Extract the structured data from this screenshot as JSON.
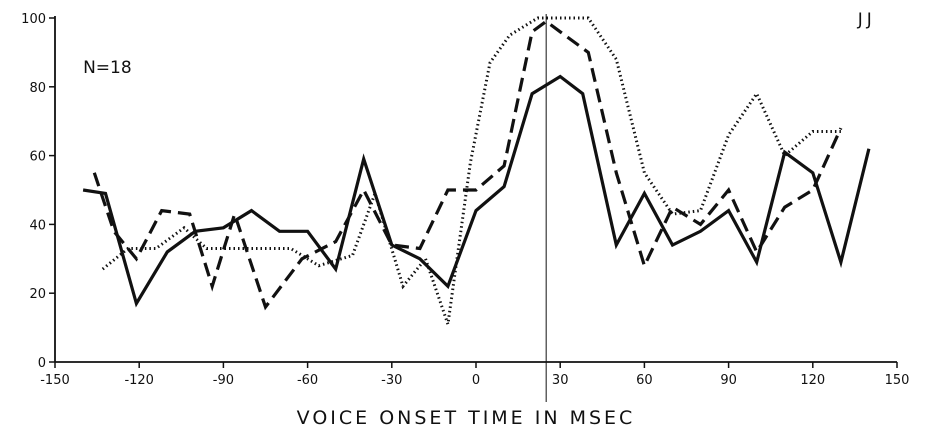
{
  "chart_data": {
    "type": "line",
    "title": "",
    "xlabel": "VOICE ONSET TIME IN MSEC",
    "ylabel": "",
    "xlim": [
      -150,
      150
    ],
    "ylim": [
      0,
      100
    ],
    "x_ticks": [
      -150,
      -120,
      -90,
      -60,
      -30,
      0,
      30,
      60,
      90,
      120,
      150
    ],
    "x_tick_labels": [
      "-150",
      "-120",
      "-90",
      "-60",
      "-30",
      "0",
      "30",
      "60",
      "90",
      "120",
      "150"
    ],
    "y_ticks": [
      0,
      20,
      40,
      60,
      80,
      100
    ],
    "y_tick_labels": [
      "0",
      "20",
      "40",
      "60",
      "80",
      "100"
    ],
    "grid": false,
    "annotations": [
      {
        "text": "N=18",
        "x": -140,
        "y": 84
      },
      {
        "text": "JJ",
        "x": 136,
        "y": 98
      }
    ],
    "reference_line_x": 25,
    "series": [
      {
        "style": "solid",
        "x": [
          -140,
          -132,
          -121,
          -110,
          -100,
          -90,
          -80,
          -70,
          -60,
          -50,
          -40,
          -30,
          -20,
          -10,
          0,
          10,
          20,
          30,
          38,
          50,
          60,
          70,
          80,
          90,
          100,
          110,
          120,
          130,
          140
        ],
        "y": [
          50,
          49,
          17,
          32,
          38,
          39,
          44,
          38,
          38,
          27,
          59,
          34,
          30,
          22,
          44,
          51,
          78,
          83,
          78,
          34,
          49,
          34,
          38,
          44,
          29,
          61,
          55,
          29,
          62
        ]
      },
      {
        "style": "dashed",
        "x": [
          -136,
          -129,
          -121,
          -112,
          -102,
          -94,
          -86,
          -75,
          -62,
          -50,
          -40,
          -30,
          -20,
          -10,
          0,
          10,
          20,
          25,
          30,
          40,
          50,
          60,
          70,
          80,
          90,
          100,
          110,
          120,
          130
        ],
        "y": [
          55,
          38,
          30,
          44,
          43,
          22,
          43,
          16,
          30,
          35,
          50,
          34,
          33,
          50,
          50,
          57,
          96,
          99,
          96,
          90,
          55,
          28,
          45,
          40,
          50,
          32,
          45,
          50,
          68
        ]
      },
      {
        "style": "dotted",
        "x": [
          -133,
          -124,
          -114,
          -104,
          -96,
          -86,
          -76,
          -66,
          -56,
          -44,
          -36,
          -26,
          -18,
          -10,
          -2,
          5,
          12,
          22,
          30,
          40,
          50,
          60,
          70,
          80,
          90,
          100,
          110,
          120,
          130
        ],
        "y": [
          27,
          33,
          33,
          39,
          33,
          33,
          33,
          33,
          28,
          31,
          49,
          22,
          30,
          11,
          58,
          87,
          95,
          100,
          100,
          100,
          88,
          55,
          43,
          44,
          66,
          78,
          60,
          67,
          67
        ]
      }
    ]
  }
}
